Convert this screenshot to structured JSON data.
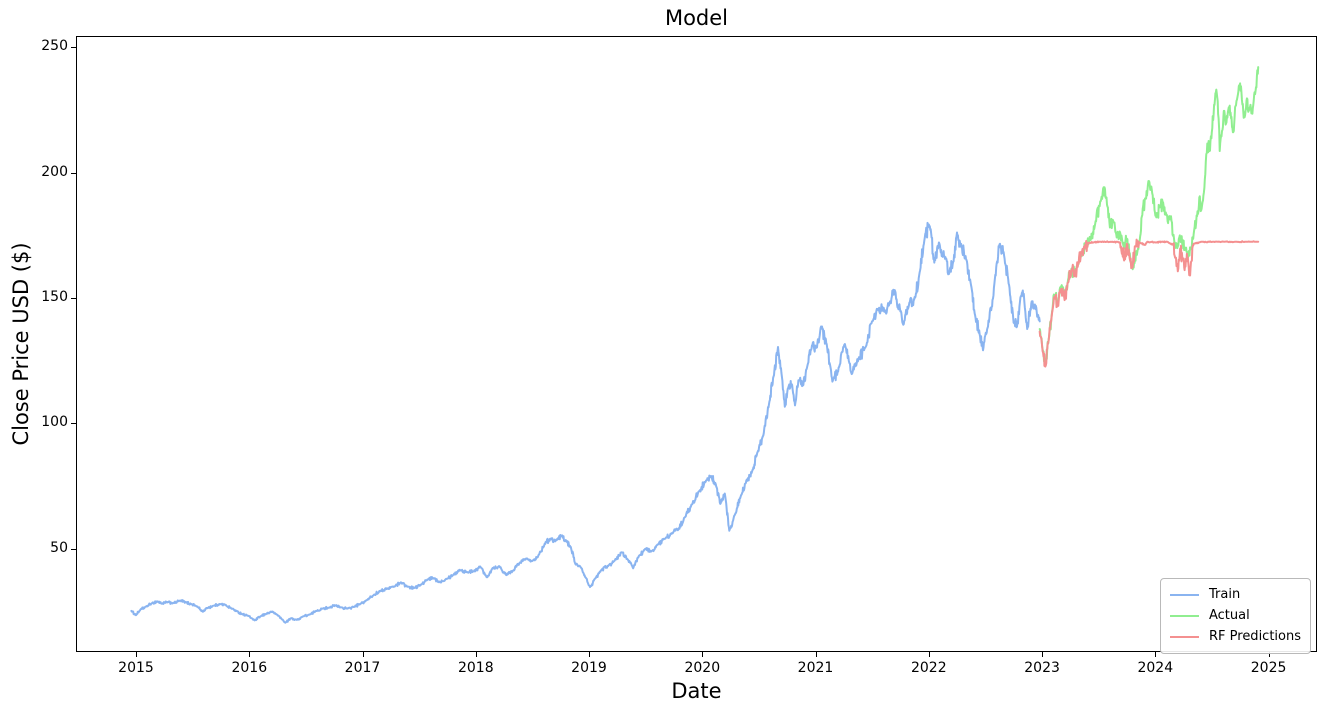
{
  "title": "Model",
  "x_axis_label": "Date",
  "y_axis_label": "Close Price USD ($)",
  "legend": {
    "position": "lower right",
    "items": [
      {
        "label": "Train",
        "color": "#8ab4f0"
      },
      {
        "label": "Actual",
        "color": "#90ee90"
      },
      {
        "label": "RF Predictions",
        "color": "#f49090"
      }
    ]
  },
  "chart_data": {
    "type": "line",
    "title": "Model",
    "xlabel": "Date",
    "ylabel": "Close Price USD ($)",
    "xlim": [
      2014.47,
      2025.41
    ],
    "ylim": [
      9.5,
      254.5
    ],
    "x_ticks": [
      2015,
      2016,
      2017,
      2018,
      2019,
      2020,
      2021,
      2022,
      2023,
      2024,
      2025
    ],
    "y_ticks": [
      50,
      100,
      150,
      200,
      250
    ],
    "grid": false,
    "legend_position": "lower right",
    "series": [
      {
        "name": "Train",
        "color": "#8ab4f0",
        "points": [
          [
            2014.95,
            25.5
          ],
          [
            2014.99,
            23.8
          ],
          [
            2015.03,
            26.0
          ],
          [
            2015.08,
            27.2
          ],
          [
            2015.13,
            28.5
          ],
          [
            2015.18,
            29.3
          ],
          [
            2015.22,
            28.4
          ],
          [
            2015.27,
            29.0
          ],
          [
            2015.32,
            28.6
          ],
          [
            2015.38,
            29.6
          ],
          [
            2015.43,
            28.9
          ],
          [
            2015.48,
            28.2
          ],
          [
            2015.53,
            27.3
          ],
          [
            2015.58,
            25.2
          ],
          [
            2015.62,
            26.7
          ],
          [
            2015.68,
            27.6
          ],
          [
            2015.73,
            28.2
          ],
          [
            2015.78,
            27.9
          ],
          [
            2015.83,
            26.6
          ],
          [
            2015.88,
            25.4
          ],
          [
            2015.93,
            24.2
          ],
          [
            2015.98,
            23.6
          ],
          [
            2016.04,
            21.7
          ],
          [
            2016.09,
            23.3
          ],
          [
            2016.14,
            24.3
          ],
          [
            2016.19,
            25.2
          ],
          [
            2016.24,
            23.9
          ],
          [
            2016.31,
            20.8
          ],
          [
            2016.36,
            22.6
          ],
          [
            2016.41,
            21.9
          ],
          [
            2016.47,
            23.4
          ],
          [
            2016.53,
            24.1
          ],
          [
            2016.58,
            25.5
          ],
          [
            2016.64,
            26.4
          ],
          [
            2016.7,
            26.9
          ],
          [
            2016.75,
            27.7
          ],
          [
            2016.8,
            26.9
          ],
          [
            2016.86,
            26.4
          ],
          [
            2016.92,
            27.2
          ],
          [
            2016.97,
            28.2
          ],
          [
            2017.03,
            29.8
          ],
          [
            2017.09,
            31.8
          ],
          [
            2017.15,
            33.6
          ],
          [
            2017.21,
            34.4
          ],
          [
            2017.27,
            35.2
          ],
          [
            2017.33,
            36.9
          ],
          [
            2017.39,
            35.1
          ],
          [
            2017.45,
            34.7
          ],
          [
            2017.51,
            36.0
          ],
          [
            2017.57,
            38.1
          ],
          [
            2017.62,
            38.6
          ],
          [
            2017.67,
            37.0
          ],
          [
            2017.73,
            38.3
          ],
          [
            2017.79,
            39.8
          ],
          [
            2017.85,
            41.9
          ],
          [
            2017.91,
            41.0
          ],
          [
            2017.97,
            41.3
          ],
          [
            2018.03,
            43.2
          ],
          [
            2018.09,
            38.9
          ],
          [
            2018.14,
            42.6
          ],
          [
            2018.2,
            43.3
          ],
          [
            2018.26,
            39.8
          ],
          [
            2018.32,
            41.5
          ],
          [
            2018.38,
            44.8
          ],
          [
            2018.44,
            46.4
          ],
          [
            2018.5,
            45.7
          ],
          [
            2018.55,
            48.0
          ],
          [
            2018.6,
            52.3
          ],
          [
            2018.65,
            54.3
          ],
          [
            2018.7,
            53.6
          ],
          [
            2018.75,
            55.6
          ],
          [
            2018.79,
            53.3
          ],
          [
            2018.83,
            51.0
          ],
          [
            2018.87,
            44.3
          ],
          [
            2018.92,
            42.8
          ],
          [
            2018.96,
            38.9
          ],
          [
            2019.0,
            35.0
          ],
          [
            2019.05,
            38.6
          ],
          [
            2019.1,
            41.8
          ],
          [
            2019.16,
            43.4
          ],
          [
            2019.22,
            45.8
          ],
          [
            2019.28,
            48.9
          ],
          [
            2019.33,
            46.2
          ],
          [
            2019.38,
            42.5
          ],
          [
            2019.43,
            47.3
          ],
          [
            2019.49,
            50.3
          ],
          [
            2019.54,
            49.2
          ],
          [
            2019.6,
            52.0
          ],
          [
            2019.66,
            54.3
          ],
          [
            2019.72,
            56.5
          ],
          [
            2019.78,
            58.0
          ],
          [
            2019.84,
            63.0
          ],
          [
            2019.9,
            68.0
          ],
          [
            2019.96,
            73.2
          ],
          [
            2020.02,
            77.0
          ],
          [
            2020.07,
            79.3
          ],
          [
            2020.11,
            76.0
          ],
          [
            2020.15,
            68.2
          ],
          [
            2020.19,
            72.3
          ],
          [
            2020.23,
            57.5
          ],
          [
            2020.28,
            64.0
          ],
          [
            2020.33,
            71.2
          ],
          [
            2020.38,
            77.5
          ],
          [
            2020.43,
            81.0
          ],
          [
            2020.48,
            89.0
          ],
          [
            2020.53,
            95.5
          ],
          [
            2020.58,
            108.0
          ],
          [
            2020.62,
            119.0
          ],
          [
            2020.66,
            130.8
          ],
          [
            2020.69,
            120.5
          ],
          [
            2020.72,
            107.0
          ],
          [
            2020.75,
            114.5
          ],
          [
            2020.78,
            116.0
          ],
          [
            2020.81,
            107.5
          ],
          [
            2020.84,
            117.5
          ],
          [
            2020.88,
            115.5
          ],
          [
            2020.92,
            123.5
          ],
          [
            2020.96,
            131.5
          ],
          [
            2021.0,
            130.5
          ],
          [
            2021.04,
            139.0
          ],
          [
            2021.09,
            132.0
          ],
          [
            2021.14,
            117.0
          ],
          [
            2021.19,
            121.0
          ],
          [
            2021.25,
            132.0
          ],
          [
            2021.31,
            120.0
          ],
          [
            2021.37,
            126.0
          ],
          [
            2021.43,
            130.5
          ],
          [
            2021.49,
            141.0
          ],
          [
            2021.54,
            146.0
          ],
          [
            2021.59,
            145.5
          ],
          [
            2021.64,
            147.5
          ],
          [
            2021.69,
            153.5
          ],
          [
            2021.74,
            145.0
          ],
          [
            2021.77,
            140.0
          ],
          [
            2021.82,
            148.5
          ],
          [
            2021.87,
            150.5
          ],
          [
            2021.91,
            160.5
          ],
          [
            2021.96,
            176.0
          ],
          [
            2022.0,
            179.0
          ],
          [
            2022.04,
            164.5
          ],
          [
            2022.08,
            172.5
          ],
          [
            2022.13,
            167.0
          ],
          [
            2022.17,
            160.0
          ],
          [
            2022.21,
            165.0
          ],
          [
            2022.24,
            176.5
          ],
          [
            2022.28,
            170.5
          ],
          [
            2022.32,
            166.0
          ],
          [
            2022.36,
            156.5
          ],
          [
            2022.4,
            143.5
          ],
          [
            2022.44,
            136.0
          ],
          [
            2022.47,
            129.5
          ],
          [
            2022.51,
            138.5
          ],
          [
            2022.55,
            147.0
          ],
          [
            2022.59,
            164.0
          ],
          [
            2022.62,
            172.0
          ],
          [
            2022.66,
            166.0
          ],
          [
            2022.7,
            155.5
          ],
          [
            2022.74,
            140.5
          ],
          [
            2022.77,
            139.0
          ],
          [
            2022.8,
            150.5
          ],
          [
            2022.83,
            152.0
          ],
          [
            2022.86,
            138.0
          ],
          [
            2022.9,
            149.0
          ],
          [
            2022.94,
            146.5
          ],
          [
            2022.97,
            141.0
          ]
        ]
      },
      {
        "name": "Actual",
        "color": "#90ee90",
        "points": [
          [
            2022.97,
            138.0
          ],
          [
            2023.0,
            129.0
          ],
          [
            2023.02,
            123.5
          ],
          [
            2023.05,
            134.0
          ],
          [
            2023.08,
            145.0
          ],
          [
            2023.1,
            151.5
          ],
          [
            2023.13,
            148.0
          ],
          [
            2023.16,
            155.0
          ],
          [
            2023.19,
            150.0
          ],
          [
            2023.22,
            157.5
          ],
          [
            2023.25,
            162.0
          ],
          [
            2023.28,
            160.5
          ],
          [
            2023.31,
            164.5
          ],
          [
            2023.35,
            167.5
          ],
          [
            2023.38,
            172.0
          ],
          [
            2023.42,
            173.5
          ],
          [
            2023.46,
            180.0
          ],
          [
            2023.5,
            187.0
          ],
          [
            2023.53,
            194.0
          ],
          [
            2023.56,
            190.5
          ],
          [
            2023.59,
            178.5
          ],
          [
            2023.62,
            181.0
          ],
          [
            2023.65,
            174.5
          ],
          [
            2023.68,
            176.5
          ],
          [
            2023.71,
            171.0
          ],
          [
            2023.74,
            174.0
          ],
          [
            2023.77,
            166.0
          ],
          [
            2023.8,
            162.5
          ],
          [
            2023.82,
            168.0
          ],
          [
            2023.85,
            172.5
          ],
          [
            2023.88,
            186.0
          ],
          [
            2023.91,
            190.0
          ],
          [
            2023.93,
            197.0
          ],
          [
            2023.96,
            193.5
          ],
          [
            2024.0,
            182.5
          ],
          [
            2024.03,
            186.5
          ],
          [
            2024.06,
            188.5
          ],
          [
            2024.08,
            184.0
          ],
          [
            2024.1,
            181.0
          ],
          [
            2024.13,
            183.0
          ],
          [
            2024.16,
            172.5
          ],
          [
            2024.19,
            171.0
          ],
          [
            2024.22,
            174.5
          ],
          [
            2024.25,
            169.5
          ],
          [
            2024.28,
            166.5
          ],
          [
            2024.31,
            170.0
          ],
          [
            2024.33,
            176.0
          ],
          [
            2024.36,
            183.0
          ],
          [
            2024.38,
            190.5
          ],
          [
            2024.4,
            186.0
          ],
          [
            2024.42,
            192.5
          ],
          [
            2024.45,
            212.0
          ],
          [
            2024.47,
            209.0
          ],
          [
            2024.49,
            216.5
          ],
          [
            2024.51,
            227.5
          ],
          [
            2024.53,
            233.5
          ],
          [
            2024.55,
            222.0
          ],
          [
            2024.56,
            209.0
          ],
          [
            2024.58,
            217.0
          ],
          [
            2024.6,
            225.0
          ],
          [
            2024.62,
            220.5
          ],
          [
            2024.64,
            226.5
          ],
          [
            2024.66,
            222.0
          ],
          [
            2024.68,
            216.5
          ],
          [
            2024.7,
            227.0
          ],
          [
            2024.72,
            231.5
          ],
          [
            2024.74,
            236.0
          ],
          [
            2024.76,
            227.5
          ],
          [
            2024.78,
            222.5
          ],
          [
            2024.8,
            230.0
          ],
          [
            2024.82,
            225.5
          ],
          [
            2024.84,
            224.0
          ],
          [
            2024.86,
            229.0
          ],
          [
            2024.88,
            234.5
          ],
          [
            2024.9,
            242.5
          ]
        ]
      },
      {
        "name": "RF Predictions",
        "color": "#f49090",
        "points": [
          [
            2022.97,
            137.0
          ],
          [
            2023.0,
            128.5
          ],
          [
            2023.02,
            123.0
          ],
          [
            2023.05,
            133.5
          ],
          [
            2023.08,
            144.5
          ],
          [
            2023.1,
            150.5
          ],
          [
            2023.13,
            147.5
          ],
          [
            2023.16,
            154.0
          ],
          [
            2023.19,
            149.5
          ],
          [
            2023.22,
            156.5
          ],
          [
            2023.25,
            161.5
          ],
          [
            2023.28,
            160.0
          ],
          [
            2023.31,
            164.0
          ],
          [
            2023.34,
            168.5
          ],
          [
            2023.37,
            171.5
          ],
          [
            2023.4,
            172.3
          ],
          [
            2023.45,
            172.6
          ],
          [
            2023.5,
            172.8
          ],
          [
            2023.6,
            172.8
          ],
          [
            2023.68,
            172.5
          ],
          [
            2023.7,
            168.5
          ],
          [
            2023.72,
            166.2
          ],
          [
            2023.74,
            172.0
          ],
          [
            2023.77,
            165.0
          ],
          [
            2023.79,
            162.5
          ],
          [
            2023.81,
            171.0
          ],
          [
            2023.85,
            172.6
          ],
          [
            2023.9,
            171.5
          ],
          [
            2023.92,
            172.8
          ],
          [
            2024.0,
            172.5
          ],
          [
            2024.05,
            172.8
          ],
          [
            2024.1,
            172.8
          ],
          [
            2024.15,
            171.5
          ],
          [
            2024.17,
            166.5
          ],
          [
            2024.19,
            161.0
          ],
          [
            2024.21,
            170.0
          ],
          [
            2024.23,
            166.0
          ],
          [
            2024.25,
            161.5
          ],
          [
            2024.27,
            168.0
          ],
          [
            2024.29,
            159.5
          ],
          [
            2024.31,
            165.0
          ],
          [
            2024.33,
            172.0
          ],
          [
            2024.4,
            172.8
          ],
          [
            2024.5,
            172.8
          ],
          [
            2024.6,
            172.8
          ],
          [
            2024.7,
            172.8
          ],
          [
            2024.8,
            172.8
          ],
          [
            2024.9,
            172.8
          ]
        ]
      }
    ]
  }
}
